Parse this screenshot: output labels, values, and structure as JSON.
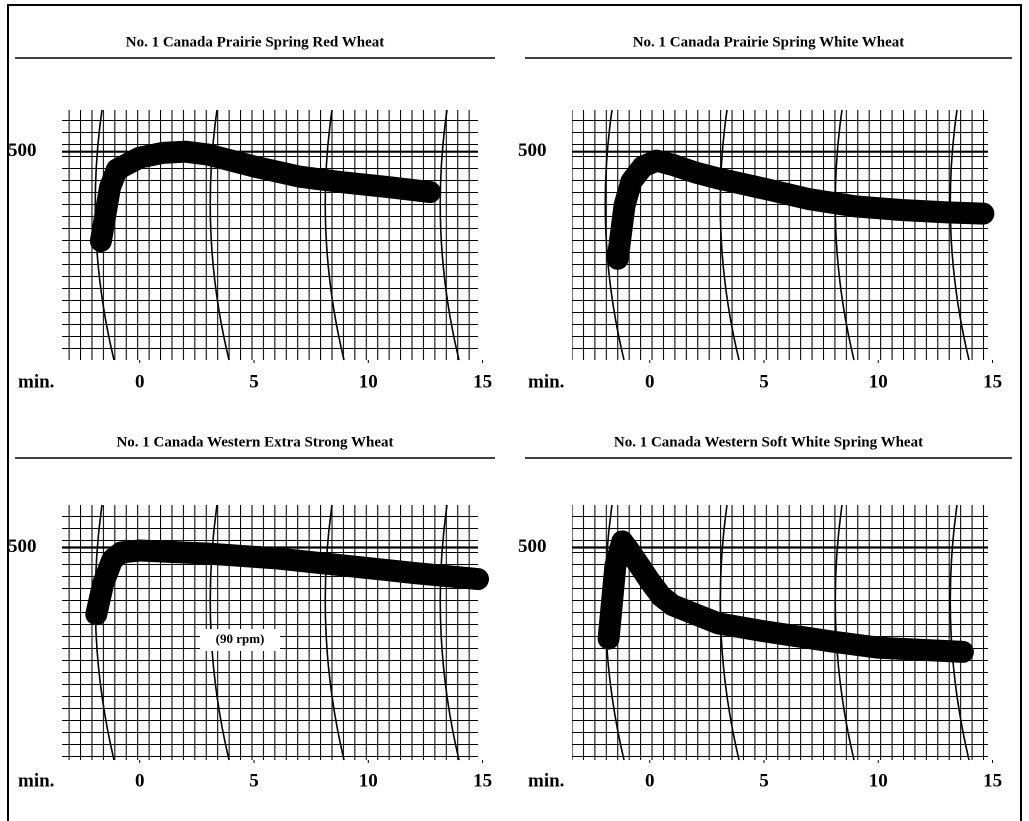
{
  "chart_data": [
    {
      "type": "line",
      "title": "No. 1 Canada Prairie Spring Red Wheat",
      "x_label": "min.",
      "x": [
        -1.7,
        -1.3,
        -1,
        0,
        1,
        2,
        3,
        5,
        7,
        9,
        11,
        12.7
      ],
      "values": [
        350,
        440,
        470,
        490,
        498,
        500,
        495,
        475,
        458,
        448,
        440,
        432
      ],
      "color": "#000000",
      "xlim": [
        -3.4,
        14.8
      ],
      "xticks": [
        0,
        5,
        10,
        15
      ],
      "ylim": [
        150,
        570
      ],
      "yticks": [
        500
      ]
    },
    {
      "type": "line",
      "title": "No. 1 Canada Prairie Spring White Wheat",
      "x_label": "min.",
      "x": [
        -1.4,
        -1.1,
        -0.8,
        -0.3,
        0.3,
        1,
        2,
        3,
        5,
        7,
        9,
        11,
        13,
        14.6
      ],
      "values": [
        320,
        410,
        450,
        475,
        485,
        478,
        465,
        455,
        438,
        420,
        408,
        402,
        398,
        396
      ],
      "color": "#000000",
      "xlim": [
        -3.4,
        14.8
      ],
      "xticks": [
        0,
        5,
        10,
        15
      ],
      "ylim": [
        150,
        570
      ],
      "yticks": [
        500
      ]
    },
    {
      "type": "line",
      "title": "No. 1 Canada Western Extra Strong Wheat",
      "x_label": "min.",
      "annotation": "(90 rpm)",
      "x": [
        -1.9,
        -1.6,
        -1.2,
        -0.8,
        0,
        3,
        6,
        9,
        12,
        14.8
      ],
      "values": [
        390,
        440,
        480,
        492,
        495,
        490,
        482,
        470,
        458,
        448
      ],
      "color": "#000000",
      "xlim": [
        -3.4,
        14.8
      ],
      "xticks": [
        0,
        5,
        10,
        15
      ],
      "ylim": [
        150,
        570
      ],
      "yticks": [
        500
      ]
    },
    {
      "type": "line",
      "title": "No. 1 Canada Western Soft White Spring Wheat",
      "x_label": "min.",
      "x": [
        -1.8,
        -1.5,
        -1.2,
        -0.8,
        0,
        0.5,
        1,
        2,
        3,
        5,
        8,
        10,
        13.7
      ],
      "values": [
        350,
        470,
        510,
        490,
        445,
        420,
        405,
        390,
        375,
        362,
        345,
        335,
        328
      ],
      "color": "#000000",
      "xlim": [
        -3.4,
        14.8
      ],
      "xticks": [
        0,
        5,
        10,
        15
      ],
      "ylim": [
        150,
        570
      ],
      "yticks": [
        500
      ]
    }
  ]
}
